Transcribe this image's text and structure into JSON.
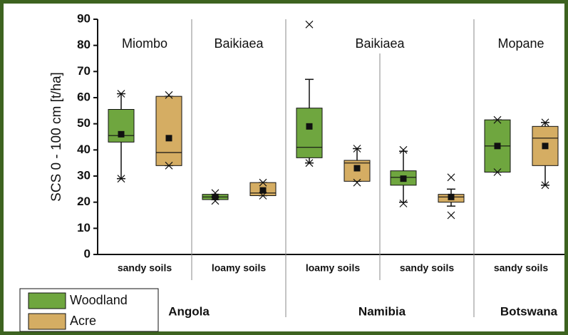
{
  "chart_data": {
    "type": "box",
    "y_label": "SCS 0 - 100 cm [t/ha]",
    "ylim": [
      0,
      90
    ],
    "yticks": [
      0,
      10,
      20,
      30,
      40,
      50,
      60,
      70,
      80,
      90
    ],
    "categories": [
      "sandy soils",
      "loamy soils",
      "loamy soils",
      "sandy soils",
      "sandy soils"
    ],
    "vegetation": [
      "Miombo",
      "Baikiaea",
      "Baikiaea",
      "Mopane"
    ],
    "countries": [
      "Angola",
      "Namibia",
      "Botswana"
    ],
    "series": [
      {
        "name": "Woodland",
        "color": "#6fa63f",
        "boxes": [
          {
            "q1": 43,
            "median": 45.5,
            "q3": 55.5,
            "whisker_low": 29,
            "whisker_high": 61.5,
            "mean": 46,
            "min": 29,
            "max": 61.5
          },
          {
            "q1": 21,
            "median": 22,
            "q3": 23,
            "whisker_low": 21,
            "whisker_high": 23,
            "mean": 22,
            "min": 20.5,
            "max": 23.5
          },
          {
            "q1": 37,
            "median": 41,
            "q3": 56,
            "whisker_low": 35,
            "whisker_high": 67,
            "mean": 49,
            "min": 35,
            "max": 88
          },
          {
            "q1": 26.5,
            "median": 29.5,
            "q3": 32,
            "whisker_low": 20,
            "whisker_high": 39.5,
            "mean": 29,
            "min": 19.5,
            "max": 40
          },
          {
            "q1": 31.5,
            "median": 41.5,
            "q3": 51.5,
            "whisker_low": 31.5,
            "whisker_high": 51.5,
            "mean": 41.5,
            "min": 31.5,
            "max": 51.5
          }
        ]
      },
      {
        "name": "Acre",
        "color": "#d5ad63",
        "boxes": [
          {
            "q1": 34,
            "median": 39,
            "q3": 60.5,
            "whisker_low": 34,
            "whisker_high": 60.5,
            "mean": 44.5,
            "min": 34,
            "max": 61
          },
          {
            "q1": 22.5,
            "median": 23.5,
            "q3": 27.5,
            "whisker_low": 22.5,
            "whisker_high": 27.5,
            "mean": 24.5,
            "min": 22.5,
            "max": 27.5
          },
          {
            "q1": 28,
            "median": 35,
            "q3": 36,
            "whisker_low": 28,
            "whisker_high": 40.5,
            "mean": 33,
            "min": 27.5,
            "max": 40.5
          },
          {
            "q1": 20,
            "median": 22,
            "q3": 23,
            "whisker_low": 18.5,
            "whisker_high": 25,
            "mean": 22,
            "min": 15,
            "max": 29.5
          },
          {
            "q1": 34,
            "median": 44.5,
            "q3": 49,
            "whisker_low": 26.5,
            "whisker_high": 50.5,
            "mean": 41.5,
            "min": 26.5,
            "max": 50.5
          }
        ]
      }
    ]
  }
}
